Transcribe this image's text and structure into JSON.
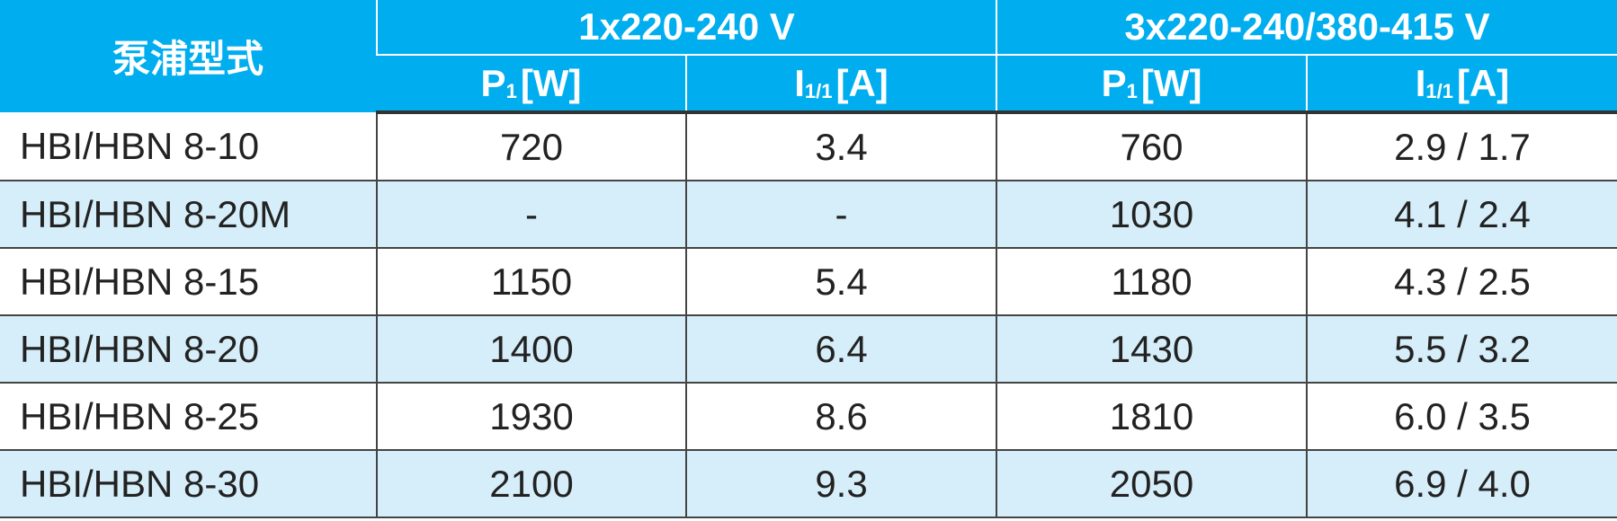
{
  "table": {
    "header": {
      "first": "泵浦型式",
      "groups": [
        "1x220-240 V",
        "3x220-240/380-415 V"
      ],
      "columns": [
        {
          "main": "P",
          "sub": "1",
          "unit": "[W]"
        },
        {
          "main": "I",
          "sub": "1/1",
          "unit": "[A]"
        },
        {
          "main": "P",
          "sub": "1",
          "unit": "[W]"
        },
        {
          "main": "I",
          "sub": "1/1",
          "unit": "[A]"
        }
      ]
    },
    "rows": [
      [
        "HBI/HBN 8-10",
        "720",
        "3.4",
        "760",
        "2.9 / 1.7"
      ],
      [
        "HBI/HBN 8-20M",
        "-",
        "-",
        "1030",
        "4.1 / 2.4"
      ],
      [
        "HBI/HBN 8-15",
        "1150",
        "5.4",
        "1180",
        "4.3 / 2.5"
      ],
      [
        "HBI/HBN 8-20",
        "1400",
        "6.4",
        "1430",
        "5.5 / 3.2"
      ],
      [
        "HBI/HBN 8-25",
        "1930",
        "8.6",
        "1810",
        "6.0 / 3.5"
      ],
      [
        "HBI/HBN 8-30",
        "2100",
        "9.3",
        "2050",
        "6.9 / 4.0"
      ]
    ]
  }
}
